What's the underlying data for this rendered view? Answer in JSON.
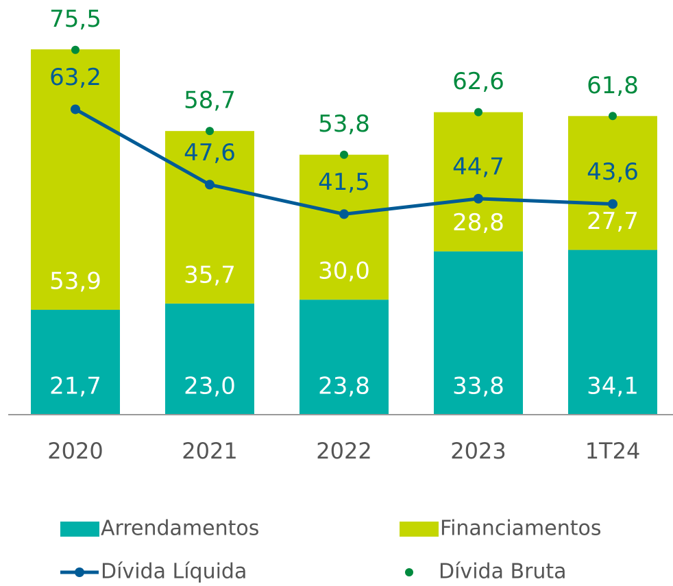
{
  "chart_data": {
    "type": "bar",
    "stacked": true,
    "categories": [
      "2020",
      "2021",
      "2022",
      "2023",
      "1T24"
    ],
    "ylim": [
      0,
      80
    ],
    "series": [
      {
        "name": "Arrendamentos",
        "type": "bar",
        "color": "#00b0a8",
        "label_color": "#ffffff",
        "values": [
          21.7,
          23.0,
          23.8,
          33.8,
          34.1
        ],
        "value_labels": [
          "21,7",
          "23,0",
          "23,8",
          "33,8",
          "34,1"
        ]
      },
      {
        "name": "Financiamentos",
        "type": "bar",
        "color": "#c4d600",
        "label_color": "#ffffff",
        "values": [
          53.9,
          35.7,
          30.0,
          28.8,
          27.7
        ],
        "value_labels": [
          "53,9",
          "35,7",
          "30,0",
          "28,8",
          "27,7"
        ]
      },
      {
        "name": "Dívida Líquida",
        "type": "line",
        "color": "#005b96",
        "label_color": "#005b96",
        "values": [
          63.2,
          47.6,
          41.5,
          44.7,
          43.6
        ],
        "value_labels": [
          "63,2",
          "47,6",
          "41,5",
          "44,7",
          "43,6"
        ]
      },
      {
        "name": "Dívida Bruta",
        "type": "scatter",
        "color": "#008a3e",
        "label_color": "#008a3e",
        "values": [
          75.5,
          58.7,
          53.8,
          62.6,
          61.8
        ],
        "value_labels": [
          "75,5",
          "58,7",
          "53,8",
          "62,6",
          "61,8"
        ]
      }
    ]
  }
}
